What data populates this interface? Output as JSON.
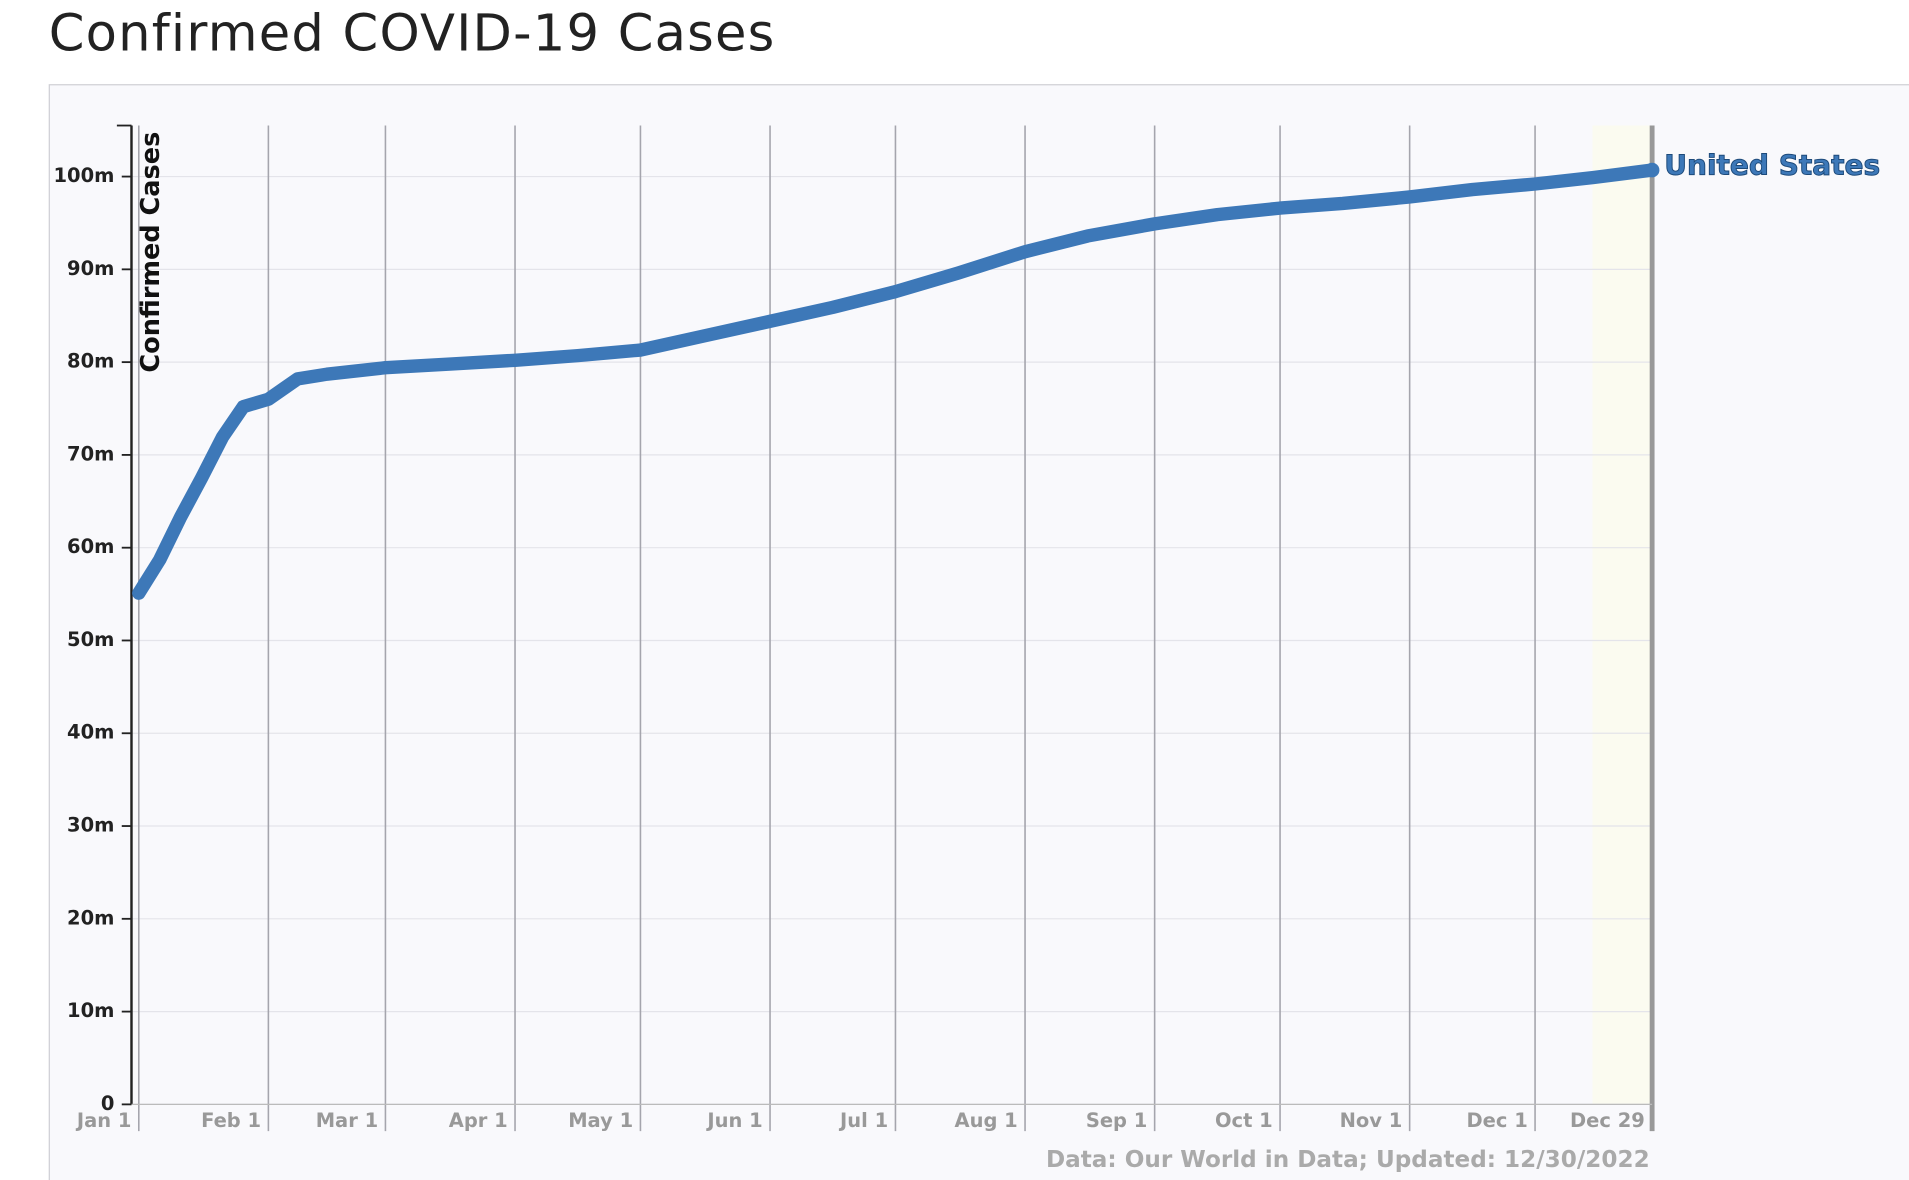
{
  "chart_data": {
    "type": "line",
    "title": "Confirmed COVID-19 Cases",
    "y_label": "Confirmed Cases",
    "source": "Data: Our World in Data; Updated: 12/30/2022",
    "x": [
      0,
      5,
      10,
      15,
      20,
      25,
      31,
      38,
      45,
      59,
      75,
      90,
      105,
      120,
      135,
      151,
      166,
      181,
      196,
      212,
      227,
      243,
      258,
      273,
      288,
      304,
      319,
      334,
      348,
      362
    ],
    "series": [
      {
        "name": "United States",
        "color": "#3d78b8",
        "values": [
          55.1,
          58.7,
          63.3,
          67.5,
          71.9,
          75.2,
          76.0,
          78.2,
          78.7,
          79.4,
          79.8,
          80.2,
          80.7,
          81.3,
          82.8,
          84.4,
          85.9,
          87.6,
          89.6,
          91.9,
          93.6,
          94.9,
          95.9,
          96.6,
          97.1,
          97.8,
          98.6,
          99.2,
          99.9,
          100.7
        ]
      }
    ],
    "xlim": [
      0,
      362
    ],
    "xticks": [
      {
        "value": 0,
        "label": "Jan 1"
      },
      {
        "value": 31,
        "label": "Feb 1"
      },
      {
        "value": 59,
        "label": "Mar 1"
      },
      {
        "value": 90,
        "label": "Apr 1"
      },
      {
        "value": 120,
        "label": "May 1"
      },
      {
        "value": 151,
        "label": "Jun 1"
      },
      {
        "value": 181,
        "label": "Jul 1"
      },
      {
        "value": 212,
        "label": "Aug 1"
      },
      {
        "value": 243,
        "label": "Sep 1"
      },
      {
        "value": 273,
        "label": "Oct 1"
      },
      {
        "value": 304,
        "label": "Nov 1"
      },
      {
        "value": 334,
        "label": "Dec 1"
      },
      {
        "value": 362,
        "label": "Dec 29"
      }
    ],
    "ylim": [
      0,
      105.5
    ],
    "yticks": [
      0,
      {
        "value": 10,
        "label": "10m"
      },
      {
        "value": 20,
        "label": "20m"
      },
      {
        "value": 30,
        "label": "30m"
      },
      {
        "value": 40,
        "label": "40m"
      },
      {
        "value": 50,
        "label": "50m"
      },
      {
        "value": 60,
        "label": "60m"
      },
      {
        "value": 70,
        "label": "70m"
      },
      {
        "value": 80,
        "label": "80m"
      },
      {
        "value": 90,
        "label": "90m"
      },
      {
        "value": 100,
        "label": "100m"
      }
    ],
    "grid": true
  }
}
